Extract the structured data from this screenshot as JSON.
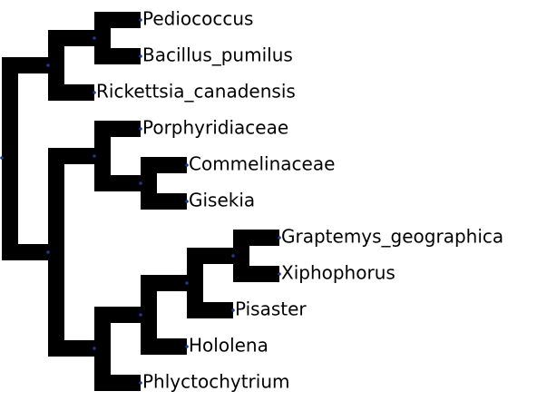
{
  "tree": {
    "colors": {
      "branch": "#000000",
      "node": "#1a3a8f"
    },
    "leaves": [
      "Pediococcus",
      "Bacillus_pumilus",
      "Rickettsia_canadensis",
      "Porphyridiaceae",
      "Commelinaceae",
      "Gisekia",
      "Graptemys_geographica",
      "Xiphophorus",
      "Pisaster",
      "Hololena",
      "Phlyctochytrium"
    ]
  }
}
